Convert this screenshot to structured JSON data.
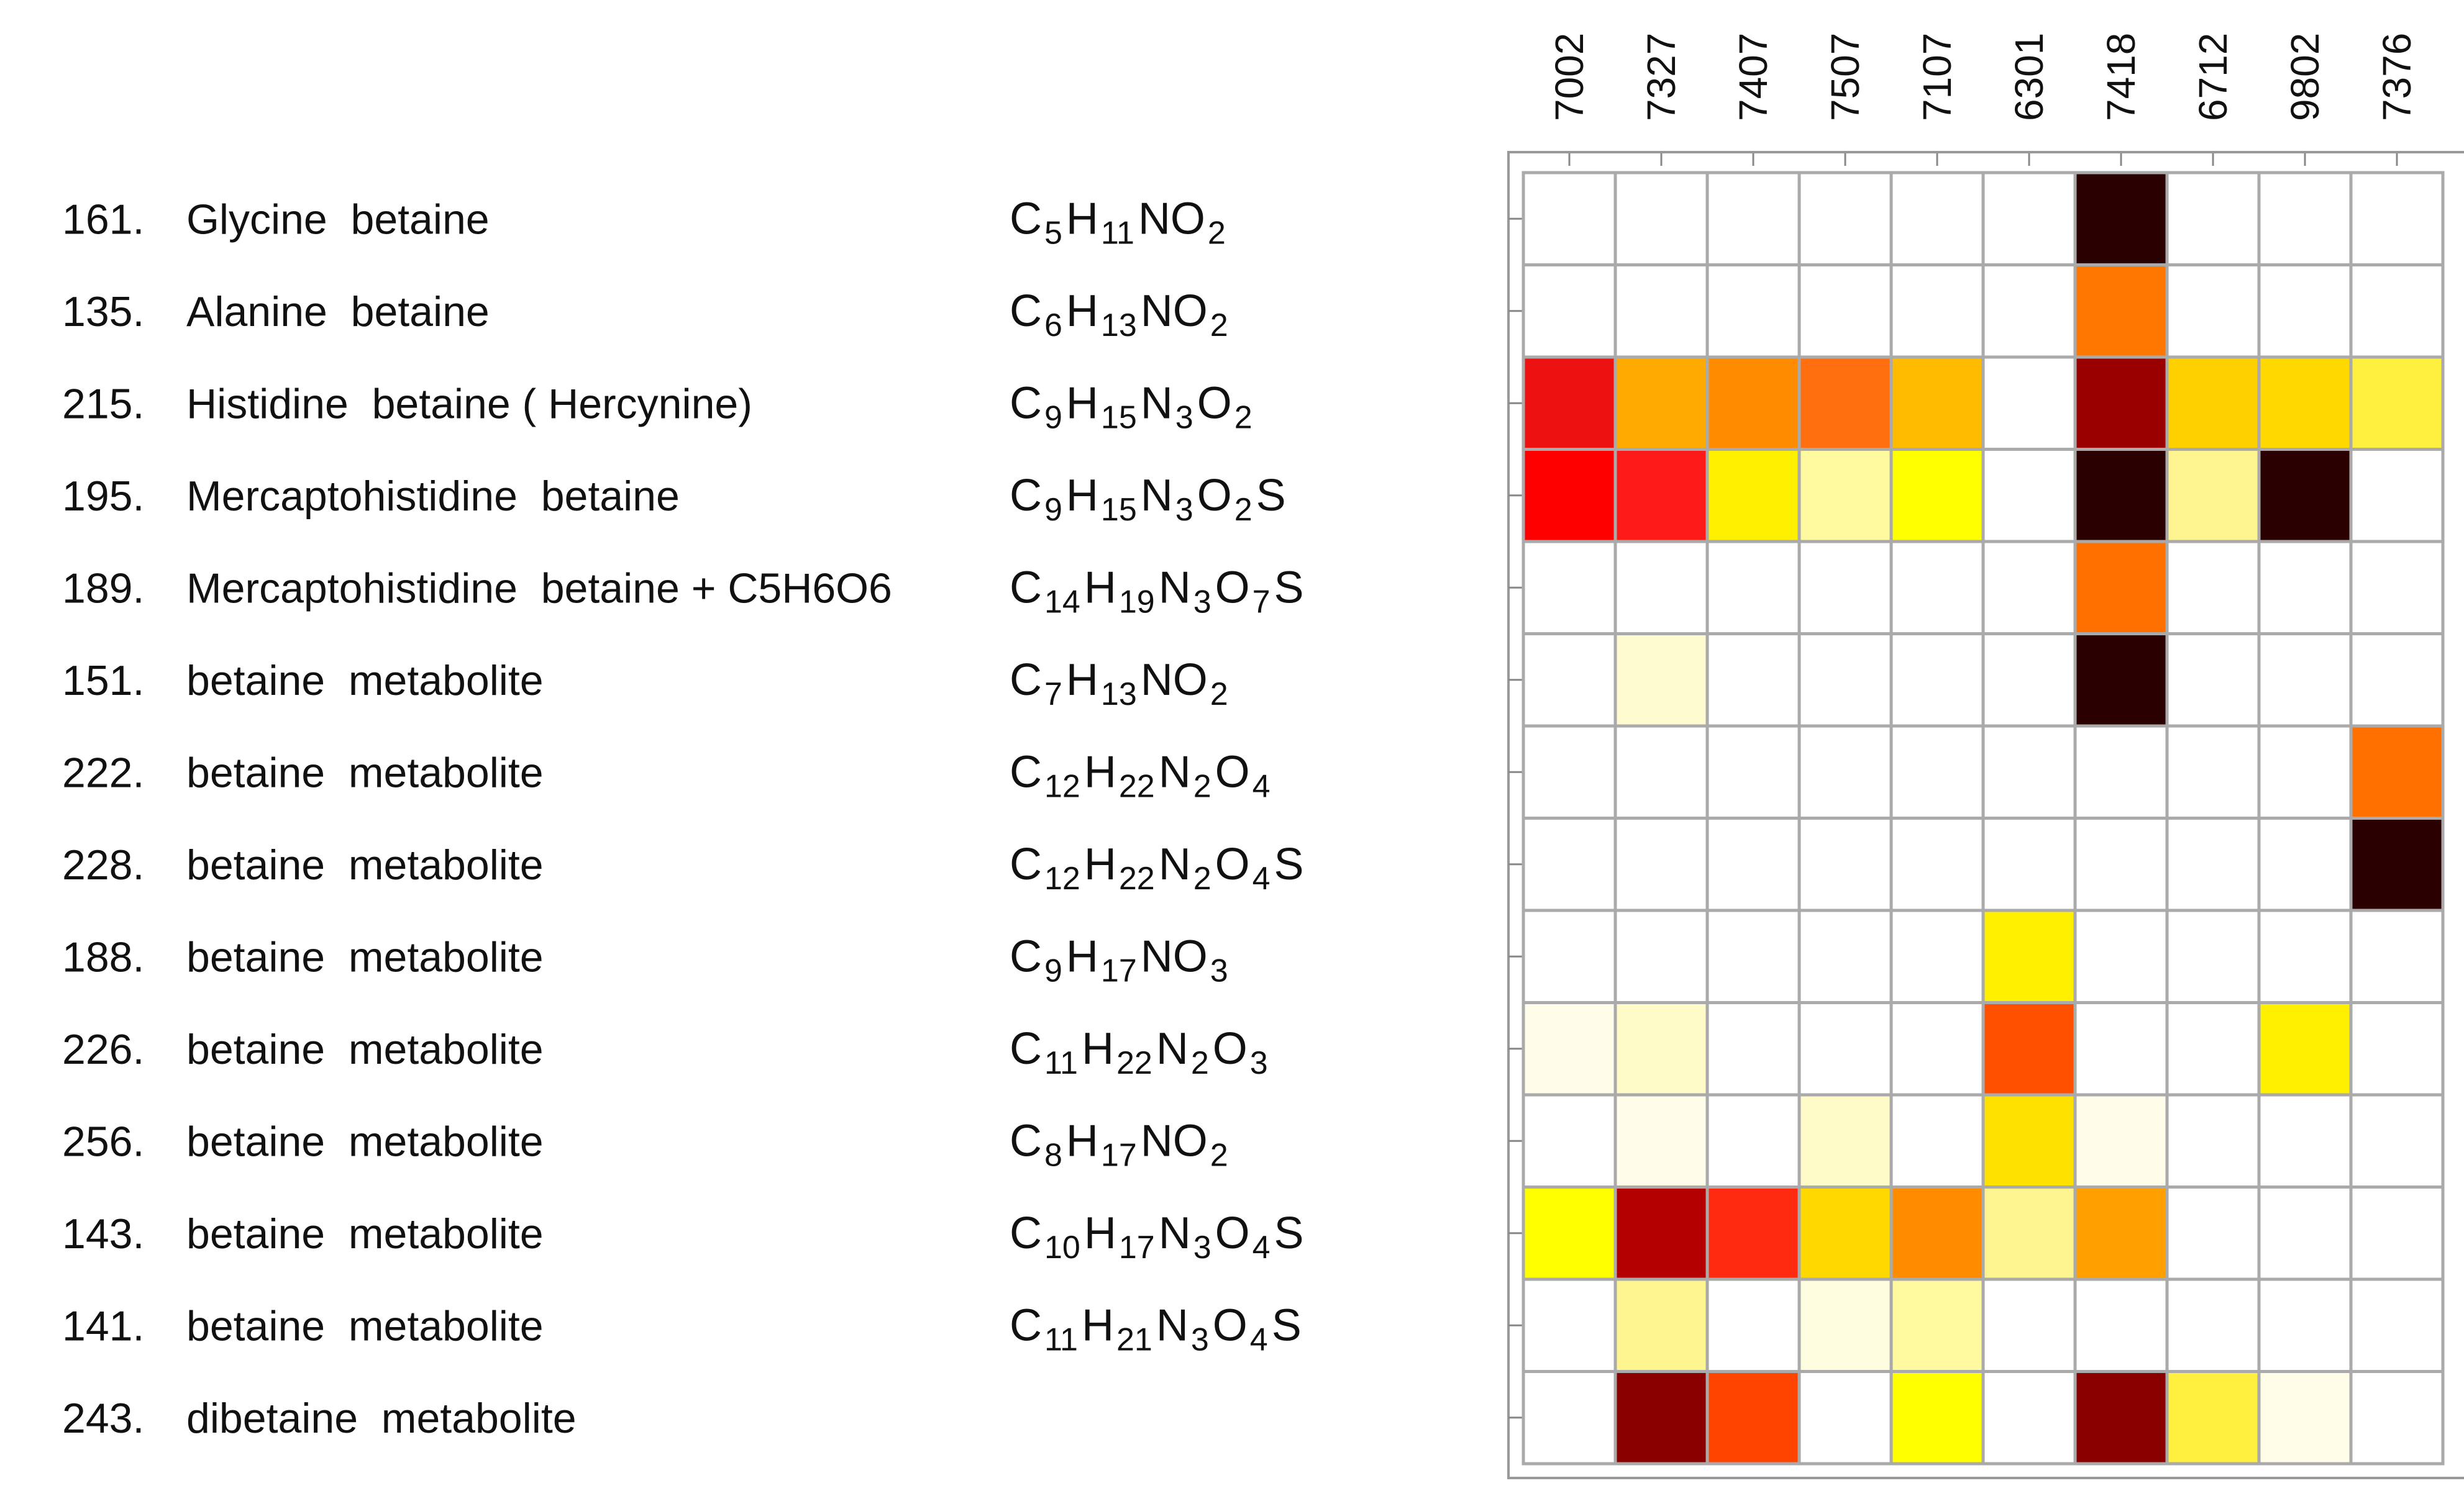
{
  "chart_data": {
    "type": "heatmap",
    "title": "",
    "xlabel": "",
    "ylabel": "",
    "grid": true,
    "legend": "none",
    "columns": [
      "7002",
      "7327",
      "7407",
      "7507",
      "7107",
      "6301",
      "7418",
      "6712",
      "9802",
      "7376"
    ],
    "rows": [
      {
        "number": "161.",
        "name": "Glycine  betaine",
        "formula": [
          [
            "C",
            ""
          ],
          [
            "5",
            "sub"
          ],
          [
            "H",
            ""
          ],
          [
            "11",
            "sub"
          ],
          [
            "NO",
            ""
          ],
          [
            "2",
            "sub"
          ]
        ]
      },
      {
        "number": "135.",
        "name": "Alanine  betaine",
        "formula": [
          [
            "C",
            ""
          ],
          [
            "6",
            "sub"
          ],
          [
            "H",
            ""
          ],
          [
            "13",
            "sub"
          ],
          [
            "NO",
            ""
          ],
          [
            "2",
            "sub"
          ]
        ]
      },
      {
        "number": "215.",
        "name": "Histidine  betaine ( Hercynine)",
        "formula": [
          [
            "C",
            ""
          ],
          [
            "9",
            "sub"
          ],
          [
            "H",
            ""
          ],
          [
            "15",
            "sub"
          ],
          [
            "N",
            ""
          ],
          [
            "3",
            "sub"
          ],
          [
            "O",
            ""
          ],
          [
            "2",
            "sub"
          ]
        ]
      },
      {
        "number": "195.",
        "name": "Mercaptohistidine  betaine",
        "formula": [
          [
            "C",
            ""
          ],
          [
            "9",
            "sub"
          ],
          [
            "H",
            ""
          ],
          [
            "15",
            "sub"
          ],
          [
            "N",
            ""
          ],
          [
            "3",
            "sub"
          ],
          [
            "O",
            ""
          ],
          [
            "2",
            "sub"
          ],
          [
            "S",
            ""
          ]
        ]
      },
      {
        "number": "189.",
        "name": "Mercaptohistidine  betaine + C5H6O6",
        "formula": [
          [
            "C",
            ""
          ],
          [
            "14",
            "sub"
          ],
          [
            "H",
            ""
          ],
          [
            "19",
            "sub"
          ],
          [
            "N",
            ""
          ],
          [
            "3",
            "sub"
          ],
          [
            "O",
            ""
          ],
          [
            "7",
            "sub"
          ],
          [
            "S",
            ""
          ]
        ]
      },
      {
        "number": "151.",
        "name": "betaine  metabolite",
        "formula": [
          [
            "C",
            ""
          ],
          [
            "7",
            "sub"
          ],
          [
            "H",
            ""
          ],
          [
            "13",
            "sub"
          ],
          [
            "NO",
            ""
          ],
          [
            "2",
            "sub"
          ]
        ]
      },
      {
        "number": "222.",
        "name": "betaine  metabolite",
        "formula": [
          [
            "C",
            ""
          ],
          [
            "12",
            "sub"
          ],
          [
            "H",
            ""
          ],
          [
            "22",
            "sub"
          ],
          [
            "N",
            ""
          ],
          [
            "2",
            "sub"
          ],
          [
            "O",
            ""
          ],
          [
            "4",
            "sub"
          ]
        ]
      },
      {
        "number": "228.",
        "name": "betaine  metabolite",
        "formula": [
          [
            "C",
            ""
          ],
          [
            "12",
            "sub"
          ],
          [
            "H",
            ""
          ],
          [
            "22",
            "sub"
          ],
          [
            "N",
            ""
          ],
          [
            "2",
            "sub"
          ],
          [
            "O",
            ""
          ],
          [
            "4",
            "sub"
          ],
          [
            "S",
            ""
          ]
        ]
      },
      {
        "number": "188.",
        "name": "betaine  metabolite",
        "formula": [
          [
            "C",
            ""
          ],
          [
            "9",
            "sub"
          ],
          [
            "H",
            ""
          ],
          [
            "17",
            "sub"
          ],
          [
            "NO",
            ""
          ],
          [
            "3",
            "sub"
          ]
        ]
      },
      {
        "number": "226.",
        "name": "betaine  metabolite",
        "formula": [
          [
            "C",
            ""
          ],
          [
            "11",
            "sub"
          ],
          [
            "H",
            ""
          ],
          [
            "22",
            "sub"
          ],
          [
            "N",
            ""
          ],
          [
            "2",
            "sub"
          ],
          [
            "O",
            ""
          ],
          [
            "3",
            "sub"
          ]
        ]
      },
      {
        "number": "256.",
        "name": "betaine  metabolite",
        "formula": [
          [
            "C",
            ""
          ],
          [
            "8",
            "sub"
          ],
          [
            "H",
            ""
          ],
          [
            "17",
            "sub"
          ],
          [
            "NO",
            ""
          ],
          [
            "2",
            "sub"
          ]
        ]
      },
      {
        "number": "143.",
        "name": "betaine  metabolite",
        "formula": [
          [
            "C",
            ""
          ],
          [
            "10",
            "sub"
          ],
          [
            "H",
            ""
          ],
          [
            "17",
            "sub"
          ],
          [
            "N",
            ""
          ],
          [
            "3",
            "sub"
          ],
          [
            "O",
            ""
          ],
          [
            "4",
            "sub"
          ],
          [
            "S",
            ""
          ]
        ]
      },
      {
        "number": "141.",
        "name": "betaine  metabolite",
        "formula": [
          [
            "C",
            ""
          ],
          [
            "11",
            "sub"
          ],
          [
            "H",
            ""
          ],
          [
            "21",
            "sub"
          ],
          [
            "N",
            ""
          ],
          [
            "3",
            "sub"
          ],
          [
            "O",
            ""
          ],
          [
            "4",
            "sub"
          ],
          [
            "S",
            ""
          ]
        ]
      },
      {
        "number": "243.",
        "name": "dibetaine  metabolite",
        "formula": []
      }
    ],
    "cell_colors": [
      [
        "#ffffff",
        "#ffffff",
        "#ffffff",
        "#ffffff",
        "#ffffff",
        "#ffffff",
        "#2a0000",
        "#ffffff",
        "#ffffff",
        "#ffffff"
      ],
      [
        "#ffffff",
        "#ffffff",
        "#ffffff",
        "#ffffff",
        "#ffffff",
        "#ffffff",
        "#ff7700",
        "#ffffff",
        "#ffffff",
        "#ffffff"
      ],
      [
        "#ee1111",
        "#ffaa00",
        "#ff8c00",
        "#ff6f10",
        "#ffbb00",
        "#ffffff",
        "#9a0000",
        "#ffd000",
        "#ffd800",
        "#fff040"
      ],
      [
        "#ff0000",
        "#ff1a1a",
        "#fff000",
        "#fffaa0",
        "#ffff00",
        "#ffffff",
        "#2a0000",
        "#fff590",
        "#2a0000",
        "#ffffff"
      ],
      [
        "#ffffff",
        "#ffffff",
        "#ffffff",
        "#ffffff",
        "#ffffff",
        "#ffffff",
        "#ff7000",
        "#ffffff",
        "#ffffff",
        "#ffffff"
      ],
      [
        "#ffffff",
        "#fffbd0",
        "#ffffff",
        "#ffffff",
        "#ffffff",
        "#ffffff",
        "#2a0000",
        "#ffffff",
        "#ffffff",
        "#ffffff"
      ],
      [
        "#ffffff",
        "#ffffff",
        "#ffffff",
        "#ffffff",
        "#ffffff",
        "#ffffff",
        "#ffffff",
        "#ffffff",
        "#ffffff",
        "#ff7000"
      ],
      [
        "#ffffff",
        "#ffffff",
        "#ffffff",
        "#ffffff",
        "#ffffff",
        "#ffffff",
        "#ffffff",
        "#ffffff",
        "#ffffff",
        "#2a0000"
      ],
      [
        "#ffffff",
        "#ffffff",
        "#ffffff",
        "#ffffff",
        "#ffffff",
        "#fff000",
        "#ffffff",
        "#ffffff",
        "#ffffff",
        "#ffffff"
      ],
      [
        "#fffdea",
        "#fffbc8",
        "#ffffff",
        "#ffffff",
        "#ffffff",
        "#ff5000",
        "#ffffff",
        "#ffffff",
        "#fff000",
        "#ffffff"
      ],
      [
        "#ffffff",
        "#fffdea",
        "#ffffff",
        "#fffbc8",
        "#ffffff",
        "#ffe100",
        "#fffdea",
        "#ffffff",
        "#ffffff",
        "#ffffff"
      ],
      [
        "#ffff00",
        "#b40000",
        "#ff2a10",
        "#ffd800",
        "#ff8c00",
        "#fff590",
        "#ffa000",
        "#ffffff",
        "#ffffff",
        "#ffffff"
      ],
      [
        "#ffffff",
        "#fff590",
        "#ffffff",
        "#fffde0",
        "#fffaa0",
        "#ffffff",
        "#ffffff",
        "#ffffff",
        "#ffffff",
        "#ffffff"
      ],
      [
        "#ffffff",
        "#8a0000",
        "#ff4400",
        "#ffffff",
        "#ffff00",
        "#ffffff",
        "#8a0000",
        "#fff040",
        "#fffde8",
        "#ffffff"
      ]
    ]
  }
}
